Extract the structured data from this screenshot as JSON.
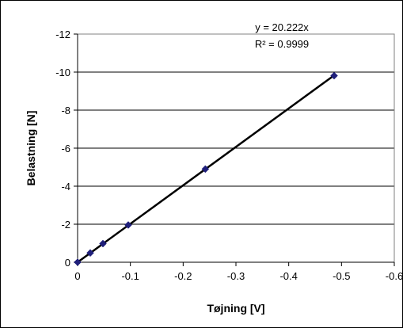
{
  "chart_data": {
    "type": "scatter",
    "title": "",
    "xlabel": "Tøjning [V]",
    "ylabel": "Belastning [N]",
    "xlim": [
      0,
      -0.6
    ],
    "ylim": [
      0,
      -12
    ],
    "x_ticks": [
      0,
      -0.1,
      -0.2,
      -0.3,
      -0.4,
      -0.5,
      -0.6
    ],
    "x_tick_labels": [
      "0",
      "-0.1",
      "-0.2",
      "-0.3",
      "-0.4",
      "-0.5",
      "-0.6"
    ],
    "y_ticks": [
      0,
      -2,
      -4,
      -6,
      -8,
      -10,
      -12
    ],
    "y_tick_labels": [
      "0",
      "-2",
      "-4",
      "-6",
      "-8",
      "-10",
      "-12"
    ],
    "grid": "horizontal",
    "legend": "none",
    "series": [
      {
        "x": [
          0,
          -0.024,
          -0.048,
          -0.096,
          -0.242,
          -0.486
        ],
        "y": [
          0,
          -0.49,
          -0.98,
          -1.96,
          -4.9,
          -9.81
        ],
        "marker_color": "#1f1f7a"
      }
    ],
    "trendline": {
      "slope": 20.222,
      "x_range": [
        0,
        -0.486
      ],
      "color": "#000000"
    },
    "annotations": {
      "equation": "y = 20.222x",
      "r_squared": "R² = 0.9999"
    }
  }
}
